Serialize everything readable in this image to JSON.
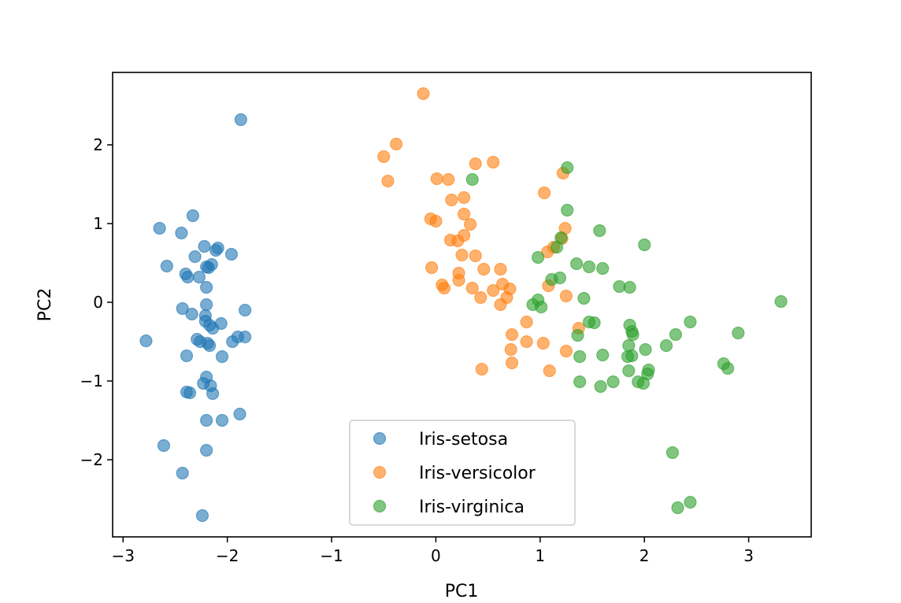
{
  "chart_data": {
    "type": "scatter",
    "title": "",
    "xlabel": "PC1",
    "ylabel": "PC2",
    "xlim": [
      -3.1,
      3.6
    ],
    "ylim": [
      -2.98,
      2.92
    ],
    "xticks": [
      -3,
      -2,
      -1,
      0,
      1,
      2,
      3
    ],
    "xtick_labels": [
      "−3",
      "−2",
      "−1",
      "0",
      "1",
      "2",
      "3"
    ],
    "yticks": [
      -2,
      -1,
      0,
      1,
      2
    ],
    "ytick_labels": [
      "−2",
      "−1",
      "0",
      "1",
      "2"
    ],
    "grid": false,
    "legend_position": "bottom-center",
    "series": [
      {
        "name": "Iris-setosa",
        "color": "#1f77b4",
        "points": [
          [
            -1.87,
            2.32
          ],
          [
            -2.33,
            1.1
          ],
          [
            -2.65,
            0.94
          ],
          [
            -2.44,
            0.88
          ],
          [
            -2.22,
            0.71
          ],
          [
            -2.09,
            0.69
          ],
          [
            -2.11,
            0.66
          ],
          [
            -1.96,
            0.61
          ],
          [
            -2.31,
            0.58
          ],
          [
            -2.58,
            0.46
          ],
          [
            -2.15,
            0.48
          ],
          [
            -2.2,
            0.45
          ],
          [
            -2.18,
            0.44
          ],
          [
            -2.4,
            0.36
          ],
          [
            -2.38,
            0.32
          ],
          [
            -2.27,
            0.32
          ],
          [
            -2.2,
            0.19
          ],
          [
            -2.2,
            -0.03
          ],
          [
            -2.43,
            -0.08
          ],
          [
            -1.83,
            -0.1
          ],
          [
            -2.34,
            -0.15
          ],
          [
            -2.21,
            -0.17
          ],
          [
            -2.21,
            -0.24
          ],
          [
            -2.06,
            -0.27
          ],
          [
            -2.17,
            -0.29
          ],
          [
            -2.14,
            -0.33
          ],
          [
            -1.9,
            -0.44
          ],
          [
            -1.83,
            -0.44
          ],
          [
            -2.29,
            -0.47
          ],
          [
            -2.26,
            -0.5
          ],
          [
            -1.95,
            -0.5
          ],
          [
            -2.19,
            -0.52
          ],
          [
            -2.17,
            -0.55
          ],
          [
            -2.78,
            -0.49
          ],
          [
            -2.39,
            -0.68
          ],
          [
            -2.05,
            -0.69
          ],
          [
            -2.2,
            -0.95
          ],
          [
            -2.23,
            -1.03
          ],
          [
            -2.16,
            -1.06
          ],
          [
            -2.39,
            -1.14
          ],
          [
            -2.36,
            -1.15
          ],
          [
            -2.14,
            -1.16
          ],
          [
            -2.2,
            -1.5
          ],
          [
            -2.05,
            -1.5
          ],
          [
            -1.88,
            -1.42
          ],
          [
            -2.61,
            -1.82
          ],
          [
            -2.2,
            -1.88
          ],
          [
            -2.43,
            -2.17
          ],
          [
            -2.24,
            -2.71
          ]
        ]
      },
      {
        "name": "Iris-versicolor",
        "color": "#ff7f0e",
        "points": [
          [
            -0.12,
            2.65
          ],
          [
            -0.38,
            2.01
          ],
          [
            -0.5,
            1.85
          ],
          [
            -0.46,
            1.54
          ],
          [
            0.38,
            1.76
          ],
          [
            0.55,
            1.78
          ],
          [
            0.01,
            1.57
          ],
          [
            0.12,
            1.56
          ],
          [
            0.27,
            1.33
          ],
          [
            0.15,
            1.3
          ],
          [
            0.27,
            1.12
          ],
          [
            -0.05,
            1.06
          ],
          [
            0.0,
            1.03
          ],
          [
            0.33,
            0.99
          ],
          [
            0.27,
            0.85
          ],
          [
            0.14,
            0.79
          ],
          [
            0.21,
            0.78
          ],
          [
            0.25,
            0.6
          ],
          [
            0.38,
            0.59
          ],
          [
            -0.04,
            0.44
          ],
          [
            0.46,
            0.42
          ],
          [
            0.62,
            0.42
          ],
          [
            0.22,
            0.37
          ],
          [
            0.22,
            0.28
          ],
          [
            0.64,
            0.23
          ],
          [
            0.06,
            0.22
          ],
          [
            0.08,
            0.18
          ],
          [
            0.35,
            0.18
          ],
          [
            0.71,
            0.17
          ],
          [
            0.55,
            0.15
          ],
          [
            0.68,
            0.06
          ],
          [
            0.43,
            0.06
          ],
          [
            0.62,
            -0.03
          ],
          [
            0.87,
            -0.25
          ],
          [
            0.73,
            -0.41
          ],
          [
            0.72,
            -0.6
          ],
          [
            0.87,
            -0.5
          ],
          [
            1.03,
            -0.52
          ],
          [
            0.73,
            -0.77
          ],
          [
            0.44,
            -0.85
          ],
          [
            1.04,
            1.39
          ],
          [
            1.22,
            1.64
          ],
          [
            1.07,
            0.64
          ],
          [
            1.24,
            0.94
          ],
          [
            1.21,
            0.81
          ],
          [
            1.13,
            0.7
          ],
          [
            1.08,
            0.21
          ],
          [
            1.25,
            0.08
          ],
          [
            1.37,
            -0.33
          ],
          [
            1.25,
            -0.62
          ],
          [
            1.09,
            -0.87
          ]
        ]
      },
      {
        "name": "Iris-virginica",
        "color": "#2ca02c",
        "points": [
          [
            1.26,
            1.71
          ],
          [
            0.35,
            1.56
          ],
          [
            1.26,
            1.17
          ],
          [
            1.57,
            0.91
          ],
          [
            1.2,
            0.82
          ],
          [
            2.0,
            0.73
          ],
          [
            1.16,
            0.7
          ],
          [
            0.98,
            0.57
          ],
          [
            1.35,
            0.49
          ],
          [
            1.47,
            0.45
          ],
          [
            1.6,
            0.43
          ],
          [
            1.19,
            0.31
          ],
          [
            1.11,
            0.29
          ],
          [
            1.76,
            0.2
          ],
          [
            1.86,
            0.19
          ],
          [
            0.98,
            0.03
          ],
          [
            3.31,
            0.01
          ],
          [
            1.42,
            0.05
          ],
          [
            0.93,
            -0.03
          ],
          [
            1.01,
            -0.06
          ],
          [
            1.47,
            -0.25
          ],
          [
            1.52,
            -0.26
          ],
          [
            2.44,
            -0.25
          ],
          [
            1.86,
            -0.29
          ],
          [
            1.88,
            -0.37
          ],
          [
            1.89,
            -0.41
          ],
          [
            2.3,
            -0.41
          ],
          [
            1.36,
            -0.42
          ],
          [
            2.9,
            -0.39
          ],
          [
            1.85,
            -0.55
          ],
          [
            2.21,
            -0.55
          ],
          [
            2.01,
            -0.6
          ],
          [
            1.38,
            -0.69
          ],
          [
            1.88,
            -0.68
          ],
          [
            1.84,
            -0.69
          ],
          [
            1.6,
            -0.67
          ],
          [
            1.85,
            -0.87
          ],
          [
            2.04,
            -0.86
          ],
          [
            2.03,
            -0.91
          ],
          [
            2.76,
            -0.78
          ],
          [
            2.8,
            -0.84
          ],
          [
            1.94,
            -1.01
          ],
          [
            1.99,
            -1.03
          ],
          [
            1.7,
            -1.01
          ],
          [
            1.38,
            -1.01
          ],
          [
            1.58,
            -1.07
          ],
          [
            2.27,
            -1.91
          ],
          [
            2.44,
            -2.54
          ],
          [
            2.32,
            -2.61
          ]
        ]
      }
    ]
  }
}
